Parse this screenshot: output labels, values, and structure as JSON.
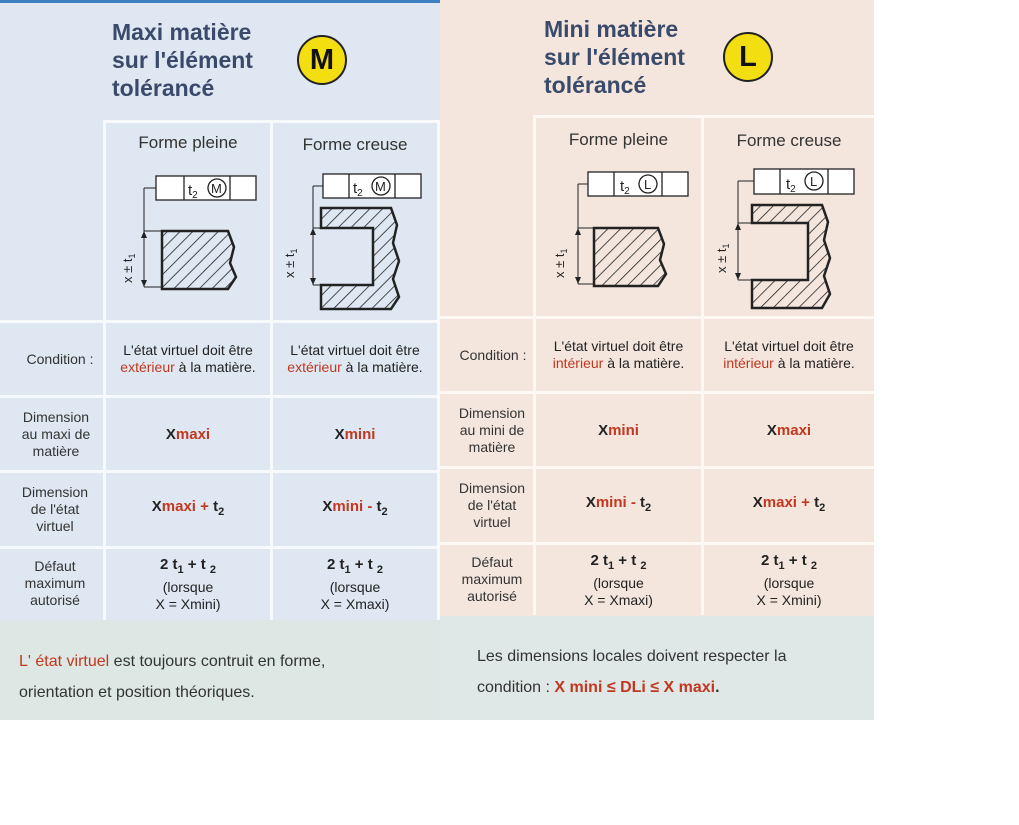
{
  "left": {
    "title_lines": [
      "Maxi matière",
      "sur l'élément",
      "tolérancé"
    ],
    "badge": "M",
    "headers": [
      "Forme pleine",
      "Forme creuse"
    ],
    "tol_frame_text": "t2",
    "dim_text": "x ± t1",
    "rows": [
      {
        "label_lines": [
          "Condition :"
        ],
        "cells": [
          {
            "line1": "L'état virtuel doit être",
            "line2_colored": "extérieur",
            "line2_rest": " à la matière."
          },
          {
            "line1": "L'état virtuel doit être",
            "line2_colored": "extérieur",
            "line2_rest": " à la matière."
          }
        ]
      },
      {
        "label_lines": [
          "Dimension",
          "au maxi de",
          "matière"
        ],
        "cells": [
          {
            "base": "X",
            "suffix": "maxi"
          },
          {
            "base": "X",
            "suffix": "mini"
          }
        ]
      },
      {
        "label_lines": [
          "Dimension",
          "de l'état",
          "virtuel"
        ],
        "cells": [
          {
            "base": "X",
            "suffix": "maxi",
            "op": " + ",
            "t": "t",
            "sub": "2"
          },
          {
            "base": "X",
            "suffix": "mini",
            "op": " - ",
            "t": "t",
            "sub": "2"
          }
        ]
      },
      {
        "label_lines": [
          "Défaut",
          "maximum",
          "autorisé"
        ],
        "cells": [
          {
            "formula_a": "2 t",
            "sub1": "1",
            "formula_b": " + t ",
            "sub2": "2",
            "note1": "(lorsque",
            "note2": "X = Xmini)"
          },
          {
            "formula_a": "2 t",
            "sub1": "1",
            "formula_b": " + t ",
            "sub2": "2",
            "note1": "(lorsque",
            "note2": "X = Xmaxi)"
          }
        ]
      }
    ],
    "footer": {
      "colored": "L' état virtuel",
      "rest1": " est toujours contruit en forme,",
      "line2": "orientation et position théoriques."
    }
  },
  "right": {
    "title_lines": [
      "Mini matière",
      "sur l'élément",
      "tolérancé"
    ],
    "badge": "L",
    "headers": [
      "Forme pleine",
      "Forme creuse"
    ],
    "tol_frame_text": "t2",
    "dim_text": "x ± t1",
    "rows": [
      {
        "label_lines": [
          "Condition :"
        ],
        "cells": [
          {
            "line1": "L'état virtuel doit être",
            "line2_colored": "intérieur",
            "line2_rest": " à la matière."
          },
          {
            "line1": "L'état virtuel doit être",
            "line2_colored": "intérieur",
            "line2_rest": " à la matière."
          }
        ]
      },
      {
        "label_lines": [
          "Dimension",
          "au mini de",
          "matière"
        ],
        "cells": [
          {
            "base": "X",
            "suffix": "mini"
          },
          {
            "base": "X",
            "suffix": "maxi"
          }
        ]
      },
      {
        "label_lines": [
          "Dimension",
          "de l'état",
          "virtuel"
        ],
        "cells": [
          {
            "base": "X",
            "suffix": "mini",
            "op": " - ",
            "t": "t",
            "sub": "2"
          },
          {
            "base": "X",
            "suffix": "maxi",
            "op": " + ",
            "t": "t",
            "sub": "2"
          }
        ]
      },
      {
        "label_lines": [
          "Défaut",
          "maximum",
          "autorisé"
        ],
        "cells": [
          {
            "formula_a": "2 t",
            "sub1": "1",
            "formula_b": " + t ",
            "sub2": "2",
            "note1": "(lorsque",
            "note2": "X = Xmaxi)"
          },
          {
            "formula_a": "2 t",
            "sub1": "1",
            "formula_b": " + t ",
            "sub2": "2",
            "note1": "(lorsque",
            "note2": "X = Xmini)"
          }
        ]
      }
    ],
    "footer": {
      "line1": "Les dimensions locales doivent respecter la",
      "prefix": "condition : ",
      "colored": "X mini ≤  DLi  ≤ X maxi",
      "end": "."
    }
  },
  "colors": {
    "left_bg": "#dfe7f2",
    "right_bg": "#f4e6dd",
    "left_grid": "#f7f9fc",
    "right_grid": "#fdf8f4",
    "title": "#3a4a6a",
    "accent_red": "#c2371f",
    "badge_yellow": "#f3de12",
    "footer_left": "#dde7e4",
    "footer_right": "#dfe8e6",
    "topbar": "#3d7fc1"
  }
}
